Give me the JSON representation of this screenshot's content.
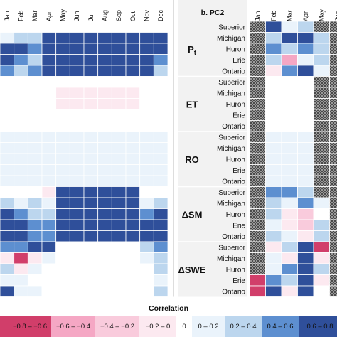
{
  "chart_data": {
    "type": "heatmap",
    "colorbar": {
      "title": "Correlation",
      "bins": [
        {
          "label": "−0.8 – −0.6",
          "color": "#d13e6a"
        },
        {
          "label": "−0.6 – −0.4",
          "color": "#f5a7c4"
        },
        {
          "label": "−0.4 – −0.2",
          "color": "#f9cbdc"
        },
        {
          "label": "−0.2 – 0",
          "color": "#fce9f0"
        },
        {
          "label": "0",
          "color": "#ffffff"
        },
        {
          "label": "0 – 0.2",
          "color": "#eaf3fb"
        },
        {
          "label": "0.2 – 0.4",
          "color": "#bcd6ee"
        },
        {
          "label": "0.4 – 0.6",
          "color": "#5d8fd0"
        },
        {
          "label": "0.6 – 0.8",
          "color": "#2f4f9a"
        }
      ]
    },
    "variables": [
      "Pt",
      "ET",
      "RO",
      "ΔSM",
      "ΔSWE"
    ],
    "lakes": [
      "Superior",
      "Michigan",
      "Huron",
      "Erie",
      "Ontario"
    ],
    "panels": [
      {
        "title": "",
        "months": [
          "Jan",
          "Feb",
          "Mar",
          "Apr",
          "May",
          "Jun",
          "Jul",
          "Aug",
          "Sep",
          "Oct",
          "Nov",
          "Dec"
        ],
        "cells": [
          [
            4,
            4,
            4,
            4,
            4,
            4,
            4,
            4,
            4,
            4,
            4,
            4
          ],
          [
            5,
            6,
            6,
            8,
            8,
            8,
            8,
            8,
            8,
            8,
            8,
            8
          ],
          [
            8,
            8,
            7,
            8,
            8,
            8,
            8,
            8,
            8,
            8,
            8,
            8
          ],
          [
            8,
            7,
            6,
            8,
            8,
            8,
            8,
            8,
            8,
            8,
            8,
            7
          ],
          [
            7,
            6,
            7,
            8,
            8,
            8,
            8,
            8,
            8,
            8,
            8,
            6
          ],
          [
            4,
            4,
            4,
            4,
            4,
            4,
            4,
            4,
            4,
            4,
            4,
            4
          ],
          [
            4,
            4,
            4,
            4,
            3,
            3,
            3,
            3,
            3,
            3,
            4,
            4
          ],
          [
            4,
            4,
            4,
            4,
            3,
            3,
            3,
            3,
            3,
            3,
            4,
            4
          ],
          [
            4,
            4,
            4,
            4,
            4,
            4,
            4,
            4,
            4,
            4,
            4,
            4
          ],
          [
            4,
            4,
            4,
            4,
            4,
            4,
            4,
            4,
            4,
            4,
            4,
            4
          ],
          [
            5,
            5,
            5,
            5,
            5,
            5,
            5,
            5,
            5,
            5,
            5,
            5
          ],
          [
            5,
            5,
            5,
            5,
            5,
            5,
            5,
            5,
            5,
            5,
            5,
            5
          ],
          [
            5,
            5,
            5,
            5,
            5,
            5,
            5,
            5,
            5,
            5,
            5,
            5
          ],
          [
            5,
            5,
            5,
            5,
            5,
            5,
            5,
            5,
            5,
            5,
            5,
            5
          ],
          [
            5,
            5,
            5,
            5,
            5,
            5,
            5,
            5,
            5,
            5,
            5,
            5
          ],
          [
            4,
            4,
            4,
            3,
            8,
            8,
            8,
            8,
            8,
            8,
            4,
            4
          ],
          [
            6,
            5,
            6,
            5,
            8,
            8,
            8,
            8,
            8,
            8,
            5,
            6
          ],
          [
            8,
            7,
            6,
            6,
            8,
            8,
            8,
            8,
            8,
            8,
            7,
            8
          ],
          [
            8,
            8,
            7,
            7,
            8,
            8,
            8,
            8,
            8,
            8,
            8,
            8
          ],
          [
            8,
            8,
            7,
            7,
            8,
            8,
            8,
            8,
            8,
            8,
            8,
            8
          ],
          [
            7,
            7,
            8,
            8,
            4,
            4,
            4,
            4,
            4,
            4,
            6,
            7
          ],
          [
            3,
            0,
            3,
            5,
            4,
            4,
            4,
            4,
            4,
            4,
            5,
            6
          ],
          [
            6,
            3,
            5,
            4,
            4,
            4,
            4,
            4,
            4,
            4,
            4,
            6
          ],
          [
            5,
            5,
            4,
            4,
            4,
            4,
            4,
            4,
            4,
            4,
            4,
            5
          ],
          [
            8,
            5,
            5,
            4,
            4,
            4,
            4,
            4,
            4,
            4,
            4,
            6
          ]
        ]
      },
      {
        "title": "b. PC2",
        "months": [
          "Jan",
          "Feb",
          "Mar",
          "Apr",
          "May",
          "Jun"
        ],
        "cells": [
          [
            -1,
            8,
            5,
            6,
            -1,
            -1
          ],
          [
            -1,
            6,
            8,
            8,
            6,
            -1
          ],
          [
            -1,
            7,
            6,
            7,
            6,
            -1
          ],
          [
            -1,
            6,
            1,
            5,
            6,
            -1
          ],
          [
            -1,
            3,
            7,
            8,
            5,
            -1
          ],
          [
            -1,
            4,
            4,
            4,
            -1,
            -1
          ],
          [
            -1,
            4,
            4,
            4,
            -1,
            -1
          ],
          [
            -1,
            4,
            4,
            4,
            -1,
            -1
          ],
          [
            -1,
            4,
            4,
            4,
            -1,
            -1
          ],
          [
            -1,
            4,
            4,
            4,
            -1,
            -1
          ],
          [
            -1,
            5,
            5,
            5,
            -1,
            -1
          ],
          [
            -1,
            5,
            5,
            5,
            -1,
            -1
          ],
          [
            -1,
            5,
            5,
            5,
            -1,
            -1
          ],
          [
            -1,
            5,
            5,
            5,
            -1,
            -1
          ],
          [
            -1,
            5,
            5,
            5,
            -1,
            -1
          ],
          [
            -1,
            7,
            7,
            6,
            -1,
            -1
          ],
          [
            -1,
            6,
            5,
            7,
            5,
            -1
          ],
          [
            -1,
            6,
            3,
            2,
            4,
            -1
          ],
          [
            -1,
            5,
            3,
            2,
            6,
            -1
          ],
          [
            -1,
            6,
            5,
            3,
            6,
            -1
          ],
          [
            -1,
            3,
            6,
            8,
            0,
            -1
          ],
          [
            -1,
            5,
            3,
            8,
            3,
            -1
          ],
          [
            -1,
            5,
            7,
            8,
            6,
            -1
          ],
          [
            0,
            7,
            6,
            8,
            3,
            -1
          ],
          [
            0,
            8,
            3,
            8,
            4,
            -1
          ]
        ]
      }
    ]
  }
}
